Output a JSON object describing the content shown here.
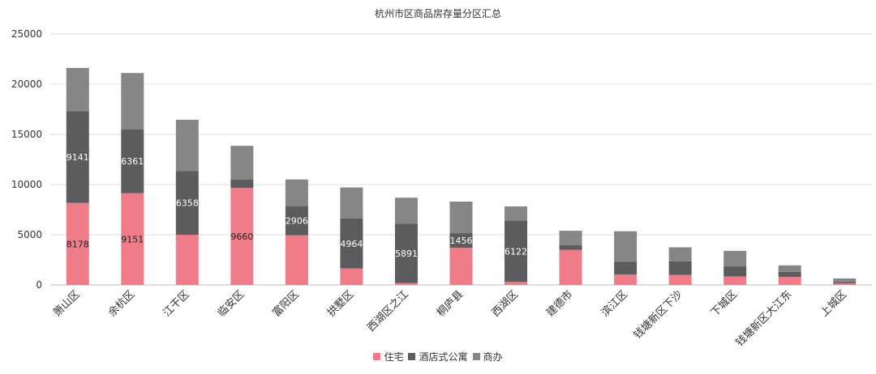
{
  "chart_data": {
    "type": "bar",
    "stacked": true,
    "title": "杭州市区商品房存量分区汇总",
    "xlabel": "",
    "ylabel": "",
    "ylim": [
      0,
      25000
    ],
    "yticks": [
      0,
      5000,
      10000,
      15000,
      20000,
      25000
    ],
    "grid": true,
    "legend_position": "bottom",
    "categories": [
      "萧山区",
      "余杭区",
      "江干区",
      "临安区",
      "富阳区",
      "拱墅区",
      "西湖区之江",
      "桐庐县",
      "西湖区",
      "建德市",
      "滨江区",
      "钱塘新区下沙",
      "下城区",
      "钱塘新区大江东",
      "上城区"
    ],
    "series": [
      {
        "name": "住宅",
        "color": "#f07c8a",
        "values": [
          8178,
          9151,
          5000,
          9660,
          4950,
          1650,
          200,
          3700,
          300,
          3500,
          1050,
          1000,
          850,
          800,
          150
        ],
        "labels": [
          "8178",
          "9151",
          "",
          "9660",
          "",
          "",
          "",
          "",
          "",
          "",
          "",
          "",
          "",
          "",
          ""
        ]
      },
      {
        "name": "酒店式公寓",
        "color": "#5c5c5e",
        "values": [
          9141,
          6361,
          6358,
          850,
          2906,
          4964,
          5891,
          1456,
          6122,
          450,
          1250,
          1350,
          1000,
          500,
          150
        ],
        "labels": [
          "9141",
          "6361",
          "6358",
          "",
          "2906",
          "4964",
          "5891",
          "1456",
          "6122",
          "",
          "",
          "",
          "",
          "",
          ""
        ]
      },
      {
        "name": "商办",
        "color": "#868688",
        "values": [
          4300,
          5600,
          5100,
          3350,
          2650,
          3100,
          2600,
          3150,
          1400,
          1450,
          3050,
          1400,
          1550,
          650,
          350
        ],
        "labels": [
          "",
          "",
          "",
          "",
          "",
          "",
          "",
          "",
          "",
          "",
          "",
          "",
          "",
          "",
          ""
        ]
      }
    ]
  }
}
